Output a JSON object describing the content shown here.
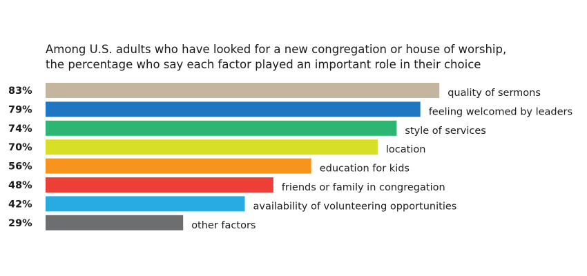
{
  "chart_data": {
    "type": "bar",
    "orientation": "horizontal",
    "title_lines": [
      "Among U.S. adults who have looked for a new congregation or house of worship,",
      "the percentage who say each factor played an important role in their choice"
    ],
    "categories": [
      "quality of sermons",
      "feeling welcomed by leaders",
      "style of services",
      "location",
      "education for kids",
      "friends or family in congregation",
      "availability of volunteering opportunities",
      "other factors"
    ],
    "values": [
      83,
      79,
      74,
      70,
      56,
      48,
      42,
      29
    ],
    "value_labels": [
      "83%",
      "79%",
      "74%",
      "70%",
      "56%",
      "48%",
      "42%",
      "29%"
    ],
    "colors": [
      "#c4b59e",
      "#1f76c2",
      "#2cb673",
      "#d7df26",
      "#f7941d",
      "#ec3f37",
      "#27ace2",
      "#6d6e70"
    ],
    "xlim": [
      0,
      100
    ],
    "grid": false,
    "xlabel": "",
    "ylabel": ""
  }
}
